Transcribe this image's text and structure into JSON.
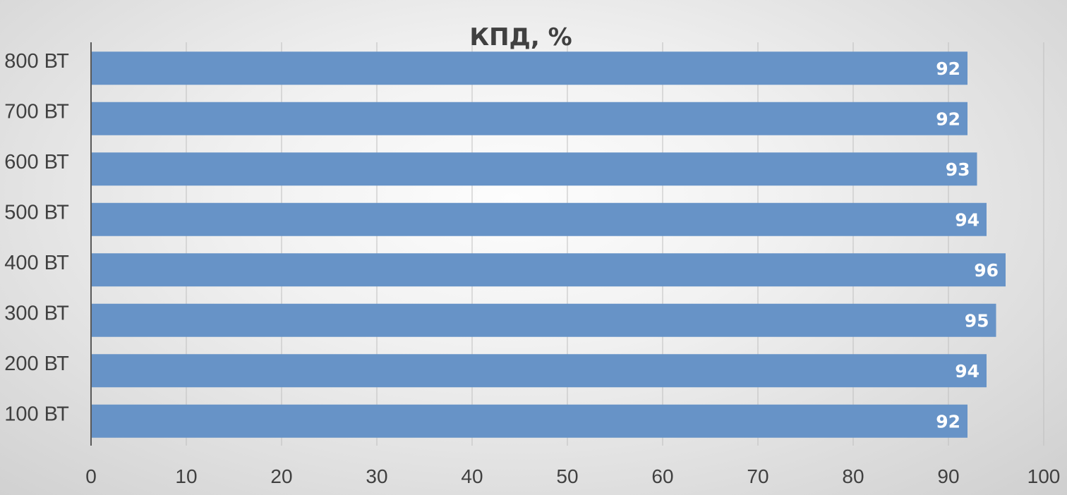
{
  "chart_data": {
    "type": "bar",
    "orientation": "horizontal",
    "title": "КПД, %",
    "categories": [
      "800 ВТ",
      "700 ВТ",
      "600 ВТ",
      "500 ВТ",
      "400 ВТ",
      "300 ВТ",
      "200 ВТ",
      "100 ВТ"
    ],
    "values": [
      92,
      92,
      93,
      94,
      96,
      95,
      94,
      92
    ],
    "xticks": [
      0,
      10,
      20,
      30,
      40,
      50,
      60,
      70,
      80,
      90,
      100
    ],
    "xlim": [
      0,
      100
    ],
    "grid": true,
    "data_labels": true,
    "colors": {
      "bar": "#6793c7",
      "grid": "#bfbfbf",
      "axis": "#595959",
      "text": "#404040",
      "data_label": "#ffffff"
    }
  }
}
